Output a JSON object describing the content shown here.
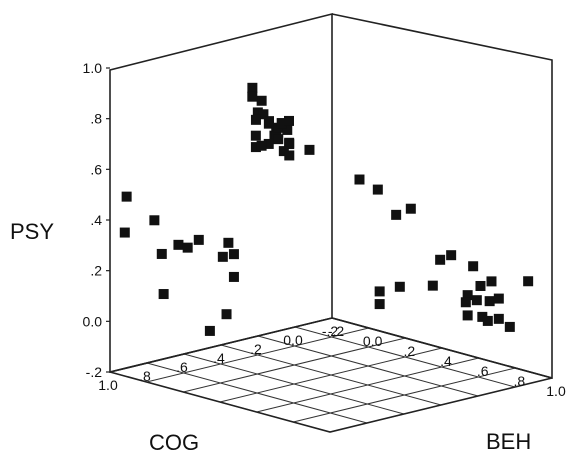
{
  "chart_data": {
    "type": "scatter",
    "title": "",
    "axes": {
      "x": {
        "label": "COG",
        "range": [
          -0.2,
          1.0
        ],
        "ticks": [
          "1.0",
          ".8",
          ".6",
          ".4",
          ".2",
          "0.0",
          "-.2"
        ]
      },
      "y": {
        "label": "BEH",
        "range": [
          -0.2,
          1.0
        ],
        "ticks": [
          "-.2",
          "0.0",
          ".2",
          ".4",
          ".6",
          ".8",
          "1.0"
        ]
      },
      "z": {
        "label": "PSY",
        "range": [
          -0.2,
          1.0
        ],
        "ticks": [
          "1.0",
          ".8",
          ".6",
          ".4",
          ".2",
          "0.0",
          "-.2"
        ]
      }
    },
    "floor_grid": true,
    "marker": "square",
    "marker_color": "#111111",
    "points": [
      [
        0.27,
        -0.16,
        0.8
      ],
      [
        0.3,
        -0.1,
        0.72
      ],
      [
        0.25,
        -0.12,
        0.7
      ],
      [
        0.22,
        -0.16,
        0.74
      ],
      [
        0.28,
        -0.06,
        0.68
      ],
      [
        0.2,
        -0.14,
        0.66
      ],
      [
        0.23,
        -0.08,
        0.62
      ],
      [
        0.26,
        -0.04,
        0.66
      ],
      [
        0.18,
        -0.12,
        0.6
      ],
      [
        0.21,
        -0.02,
        0.6
      ],
      [
        0.31,
        -0.12,
        0.78
      ],
      [
        0.19,
        -0.1,
        0.64
      ],
      [
        0.15,
        -0.14,
        0.58
      ],
      [
        0.24,
        0.0,
        0.66
      ],
      [
        0.33,
        -0.08,
        0.7
      ],
      [
        0.35,
        -0.06,
        0.6
      ],
      [
        0.29,
        0.02,
        0.7
      ],
      [
        0.17,
        -0.06,
        0.58
      ],
      [
        0.36,
        0.02,
        0.63
      ],
      [
        0.39,
        -0.02,
        0.66
      ],
      [
        0.1,
        -0.16,
        0.52
      ],
      [
        0.24,
        -0.14,
        0.57
      ],
      [
        0.3,
        0.07,
        0.72
      ],
      [
        0.13,
        -0.1,
        0.52
      ],
      [
        0.12,
        0.0,
        0.56
      ],
      [
        0.93,
        -0.19,
        0.34
      ],
      [
        0.77,
        -0.19,
        0.36
      ],
      [
        0.73,
        -0.19,
        0.22
      ],
      [
        0.92,
        -0.19,
        0.48
      ],
      [
        0.64,
        -0.19,
        0.24
      ],
      [
        0.59,
        -0.19,
        0.22
      ],
      [
        0.53,
        -0.19,
        0.24
      ],
      [
        0.72,
        -0.19,
        0.06
      ],
      [
        0.4,
        -0.19,
        0.15
      ],
      [
        0.37,
        -0.19,
        0.2
      ],
      [
        0.34,
        -0.19,
        0.15
      ],
      [
        0.38,
        -0.19,
        -0.08
      ],
      [
        0.34,
        -0.19,
        0.06
      ],
      [
        0.47,
        -0.19,
        -0.13
      ],
      [
        -0.19,
        0.06,
        0.36
      ],
      [
        -0.19,
        -0.04,
        0.38
      ],
      [
        -0.19,
        0.24,
        0.32
      ],
      [
        -0.19,
        0.16,
        0.28
      ],
      [
        -0.19,
        0.4,
        0.15
      ],
      [
        -0.19,
        0.58,
        0.16
      ],
      [
        -0.19,
        0.68,
        0.12
      ],
      [
        -0.19,
        0.62,
        0.09
      ],
      [
        -0.19,
        0.67,
        0.04
      ],
      [
        -0.19,
        0.55,
        0.04
      ],
      [
        -0.19,
        0.6,
        0.03
      ],
      [
        -0.19,
        0.72,
        0.06
      ],
      [
        -0.19,
        0.46,
        0.18
      ],
      [
        -0.19,
        0.36,
        0.04
      ],
      [
        -0.19,
        0.18,
        0.0
      ],
      [
        -0.19,
        0.07,
        -0.04
      ],
      [
        -0.19,
        0.55,
        -0.04
      ],
      [
        -0.19,
        0.63,
        -0.03
      ],
      [
        -0.19,
        0.88,
        0.16
      ],
      [
        -0.19,
        0.78,
        -0.04
      ],
      [
        -0.19,
        0.66,
        -0.04
      ],
      [
        -0.19,
        0.72,
        -0.02
      ],
      [
        -0.19,
        0.07,
        -0.09
      ],
      [
        -0.19,
        0.54,
        0.01
      ]
    ]
  }
}
